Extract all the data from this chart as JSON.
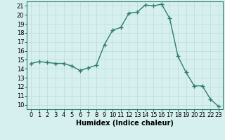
{
  "x": [
    0,
    1,
    2,
    3,
    4,
    5,
    6,
    7,
    8,
    9,
    10,
    11,
    12,
    13,
    14,
    15,
    16,
    17,
    18,
    19,
    20,
    21,
    22,
    23
  ],
  "y": [
    14.6,
    14.8,
    14.7,
    14.6,
    14.6,
    14.3,
    13.8,
    14.1,
    14.4,
    16.7,
    18.3,
    18.6,
    20.2,
    20.3,
    21.1,
    21.0,
    21.2,
    19.6,
    15.4,
    13.6,
    12.1,
    12.1,
    10.6,
    9.8
  ],
  "line_color": "#2e7d6e",
  "marker": "+",
  "marker_size": 4,
  "bg_color": "#d6f0f0",
  "grid_color": "#c0dada",
  "xlabel": "Humidex (Indice chaleur)",
  "xlabel_fontsize": 7,
  "tick_fontsize": 6,
  "ylim": [
    9.5,
    21.5
  ],
  "xlim": [
    -0.5,
    23.5
  ],
  "yticks": [
    10,
    11,
    12,
    13,
    14,
    15,
    16,
    17,
    18,
    19,
    20,
    21
  ],
  "xticks": [
    0,
    1,
    2,
    3,
    4,
    5,
    6,
    7,
    8,
    9,
    10,
    11,
    12,
    13,
    14,
    15,
    16,
    17,
    18,
    19,
    20,
    21,
    22,
    23
  ]
}
